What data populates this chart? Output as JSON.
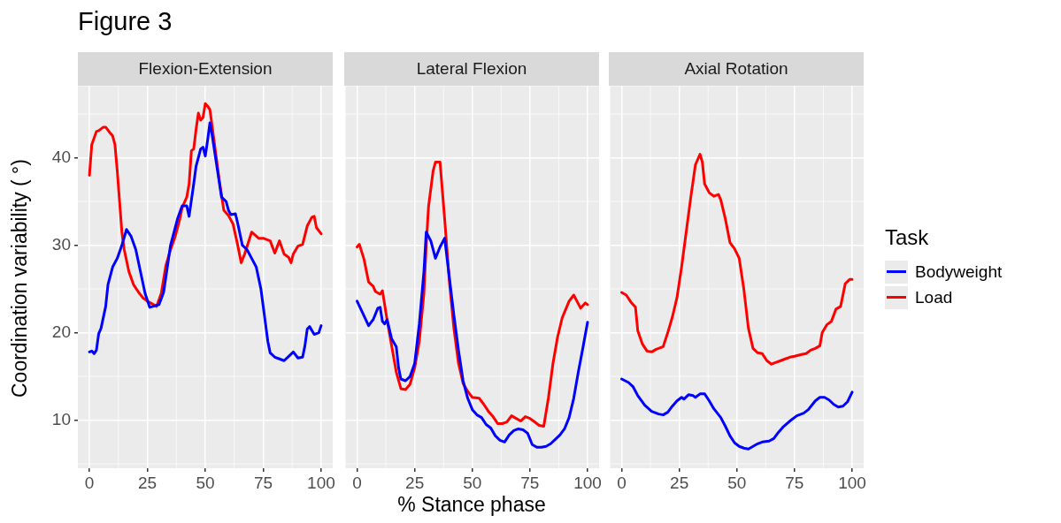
{
  "chart_data": [
    {
      "type": "line",
      "title": "Flexion-Extension",
      "annotations": [
        "Figure 3"
      ],
      "ylabel": "Coordination variability ( °)",
      "xlim": [
        -5,
        105
      ],
      "xticks": [
        0,
        25,
        50,
        75,
        100
      ],
      "ylim": [
        4.5,
        48.2
      ],
      "yticks": [
        10,
        20,
        30,
        40
      ],
      "grid": true,
      "marker": "none",
      "line_style": "solid",
      "series": [
        {
          "color": "#0000ff",
          "x": [
            0,
            1,
            2,
            3,
            4,
            5,
            7,
            8,
            10,
            12,
            14,
            16,
            18,
            20,
            22,
            24,
            26,
            30,
            32,
            35,
            38,
            40,
            42,
            43,
            45,
            46,
            48,
            49,
            50,
            51,
            52,
            53,
            55,
            57,
            59,
            60,
            61,
            63,
            64,
            66,
            68,
            70,
            72,
            74,
            76,
            77,
            78,
            80,
            82,
            84,
            86,
            88,
            90,
            92,
            93,
            94,
            95,
            97,
            99,
            100
          ],
          "values": [
            17.8,
            17.9,
            17.6,
            18.0,
            19.9,
            20.5,
            23,
            25.5,
            27.5,
            28.5,
            30,
            31.8,
            31.0,
            29.5,
            27,
            24.5,
            22.9,
            23.2,
            24.6,
            30,
            33,
            34.5,
            34.5,
            33.3,
            37,
            39,
            41,
            41.2,
            40.2,
            42,
            44,
            42.5,
            39,
            35.5,
            35,
            34,
            33.5,
            33.6,
            32.5,
            30,
            29.5,
            28.5,
            27.5,
            25,
            21,
            19,
            17.7,
            17.2,
            17.0,
            16.8,
            17.3,
            17.8,
            17.1,
            17.2,
            18.5,
            20.4,
            20.7,
            19.8,
            20,
            20.8
          ]
        },
        {
          "color": "#ff0000",
          "x": [
            0,
            1,
            3,
            4,
            6,
            7,
            9,
            10,
            11,
            12,
            13,
            14,
            15,
            17,
            19,
            21,
            23,
            25,
            27,
            29,
            31,
            33,
            35,
            37,
            39,
            40,
            42,
            43,
            44,
            45,
            46,
            47,
            48,
            49,
            50,
            51,
            52,
            54,
            56,
            58,
            60,
            62,
            64,
            65.5,
            67,
            70,
            73,
            75,
            78,
            80,
            82,
            84,
            86,
            87,
            88,
            90,
            92,
            94,
            96,
            97,
            98,
            100
          ],
          "values": [
            38,
            41.5,
            43,
            43.1,
            43.5,
            43.5,
            42.8,
            42.5,
            41.5,
            38.5,
            35,
            31.5,
            29.5,
            27,
            25.5,
            24.7,
            24,
            23.6,
            23.3,
            23,
            24.5,
            27.7,
            29.5,
            31,
            33,
            34.3,
            35.5,
            37,
            40.8,
            41,
            43.2,
            45.1,
            44.3,
            44.6,
            46.2,
            45.9,
            45.5,
            41.5,
            37.5,
            34,
            33.4,
            32.4,
            30,
            28,
            29,
            31.5,
            30.8,
            30.8,
            30.5,
            29.1,
            30.5,
            29,
            28.6,
            28,
            29,
            29.9,
            30.1,
            32.2,
            33.2,
            33.3,
            32,
            31.3
          ]
        }
      ]
    },
    {
      "type": "line",
      "title": "Lateral Flexion",
      "xlabel": "% Stance phase",
      "xlim": [
        -5,
        105
      ],
      "xticks": [
        0,
        25,
        50,
        75,
        100
      ],
      "ylim": [
        4.5,
        48.2
      ],
      "yticks": [
        10,
        20,
        30,
        40
      ],
      "tick_labels": "x",
      "grid": true,
      "marker": "none",
      "line_style": "solid",
      "series": [
        {
          "color": "#0000ff",
          "x": [
            0,
            2,
            5,
            7,
            9,
            10,
            11,
            12,
            13,
            15,
            17,
            18,
            19,
            21,
            23,
            25,
            27,
            29,
            30,
            32,
            34,
            36,
            38,
            40,
            42,
            44,
            46,
            48,
            50,
            52,
            54,
            56,
            58,
            60,
            62,
            64,
            66,
            68,
            70,
            72,
            74,
            76,
            78,
            80,
            82,
            84,
            86,
            88,
            90,
            92,
            94,
            96,
            98,
            100
          ],
          "values": [
            23.6,
            22.5,
            20.8,
            21.5,
            22.8,
            22.9,
            21.3,
            21.0,
            21.5,
            19.3,
            18.4,
            16,
            14.7,
            14.5,
            15,
            16.5,
            21,
            27,
            31.5,
            30.5,
            28.5,
            29.8,
            30.8,
            26.4,
            22,
            18,
            14.5,
            12.5,
            11.2,
            10.6,
            10.3,
            9.5,
            9.1,
            8.2,
            7.7,
            7.5,
            8.3,
            8.8,
            9.0,
            8.9,
            8.5,
            7.2,
            6.9,
            6.9,
            7.0,
            7.3,
            7.8,
            8.3,
            9.0,
            10.3,
            12.5,
            15.5,
            18.3,
            21.2
          ]
        },
        {
          "color": "#ff0000",
          "x": [
            0,
            1,
            3,
            5,
            7,
            8,
            10,
            11,
            13,
            15,
            17,
            19,
            21,
            23,
            25,
            27,
            29,
            30,
            31,
            33,
            34,
            36,
            38,
            40,
            42,
            44,
            46,
            48,
            50,
            53,
            55,
            57,
            59,
            61,
            63,
            65,
            67,
            69,
            71,
            73,
            75,
            77,
            79,
            81,
            83,
            85,
            87,
            89,
            92,
            94,
            96,
            97,
            99,
            100
          ],
          "values": [
            29.8,
            30.1,
            28.4,
            25.8,
            25.3,
            24.7,
            24.4,
            24.8,
            21.5,
            18.5,
            15.5,
            13.6,
            13.5,
            14.1,
            16,
            19,
            24.5,
            30,
            34.4,
            38.5,
            39.5,
            39.5,
            33,
            26,
            20.5,
            16.5,
            14.2,
            13.3,
            12.6,
            12.5,
            11.8,
            11.0,
            10.4,
            9.6,
            9.6,
            9.8,
            10.5,
            10.2,
            9.9,
            10.4,
            10.2,
            9.8,
            9.4,
            9.3,
            12.5,
            16.5,
            19.5,
            21.7,
            23.6,
            24.3,
            23.3,
            22.8,
            23.4,
            23.2
          ]
        }
      ]
    },
    {
      "type": "line",
      "title": "Axial Rotation",
      "legend_title": "Task",
      "legend": "right",
      "xlim": [
        -5,
        105
      ],
      "xticks": [
        0,
        25,
        50,
        75,
        100
      ],
      "ylim": [
        4.5,
        48.2
      ],
      "yticks": [
        10,
        20,
        30,
        40
      ],
      "tick_labels": "x",
      "grid": true,
      "marker": "none",
      "line_style": "solid",
      "series": [
        {
          "name": "Bodyweight",
          "color": "#0000ff",
          "x": [
            0,
            3,
            5,
            7,
            10,
            13,
            16,
            18,
            20,
            22,
            24,
            26,
            27,
            29,
            31,
            32,
            34,
            36,
            38,
            40,
            43,
            45,
            47,
            49,
            51,
            53,
            55,
            57,
            59,
            61,
            64,
            66,
            68,
            70,
            73,
            76,
            79,
            81,
            84,
            86,
            88,
            90,
            92,
            94,
            96,
            98,
            100
          ],
          "values": [
            14.7,
            14.3,
            13.8,
            12.8,
            11.7,
            11.0,
            10.7,
            10.6,
            10.9,
            11.6,
            12.2,
            12.6,
            12.4,
            12.9,
            12.8,
            12.6,
            13.0,
            13.0,
            12.2,
            11.3,
            10.3,
            9.3,
            8.2,
            7.4,
            7.0,
            6.8,
            6.7,
            7.0,
            7.3,
            7.5,
            7.6,
            7.9,
            8.6,
            9.2,
            9.9,
            10.5,
            10.8,
            11.2,
            12.2,
            12.6,
            12.6,
            12.3,
            11.8,
            11.5,
            11.6,
            12.1,
            13.2
          ]
        },
        {
          "name": "Load",
          "color": "#ff0000",
          "x": [
            0,
            2,
            4,
            6,
            7,
            9,
            11,
            13,
            15,
            18,
            20,
            22,
            24,
            26,
            28,
            30,
            32,
            34,
            35,
            36,
            38,
            40,
            42,
            43,
            45,
            47,
            49,
            51,
            53,
            55,
            57,
            59,
            61,
            63,
            65,
            67,
            69,
            71,
            73,
            75,
            78,
            80,
            82,
            84,
            86,
            87,
            89,
            91,
            93,
            95,
            97,
            99,
            100
          ],
          "values": [
            24.6,
            24.3,
            23.5,
            22.9,
            20.2,
            18.7,
            17.9,
            17.8,
            18.1,
            18.4,
            20,
            21.8,
            24,
            27.5,
            31.5,
            35.5,
            39.2,
            40.4,
            39.5,
            37,
            36,
            35.6,
            35.8,
            35.2,
            33,
            30.3,
            29.6,
            28.5,
            25,
            20.5,
            18.2,
            17.7,
            17.6,
            16.8,
            16.4,
            16.6,
            16.8,
            17.0,
            17.2,
            17.3,
            17.5,
            17.6,
            18.0,
            18.2,
            18.5,
            20.0,
            20.9,
            21.3,
            22.7,
            23.0,
            25.6,
            26.1,
            26.1
          ]
        }
      ]
    }
  ]
}
